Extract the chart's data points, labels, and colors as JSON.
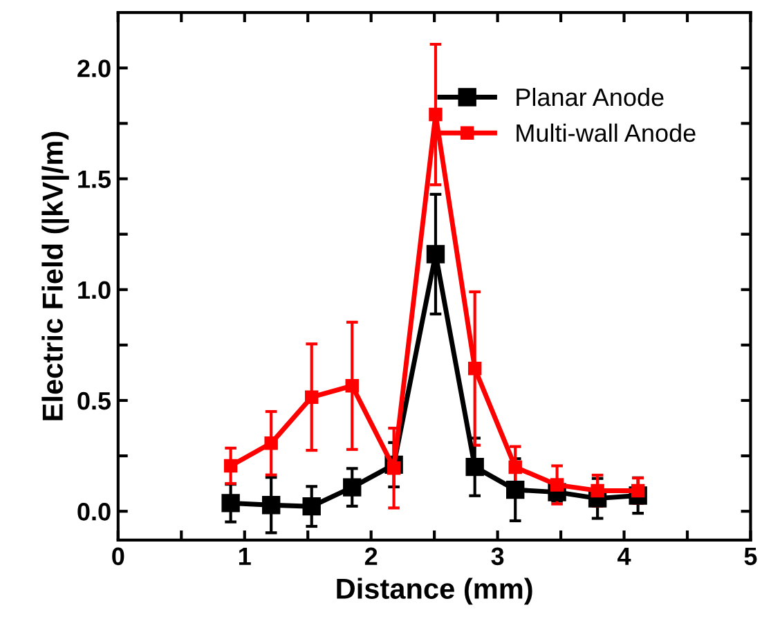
{
  "chart_data": {
    "type": "line",
    "xlabel": "Distance (mm)",
    "ylabel": "Electric Field (|kV|/m)",
    "x": [
      0.89,
      1.21,
      1.53,
      1.85,
      2.18,
      2.51,
      2.82,
      3.14,
      3.47,
      3.79,
      4.11
    ],
    "series": [
      {
        "name": "Planar Anode",
        "color": "#000000",
        "values": [
          0.037,
          0.028,
          0.022,
          0.108,
          0.21,
          1.16,
          0.2,
          0.097,
          0.086,
          0.058,
          0.071
        ],
        "errors": [
          0.085,
          0.125,
          0.09,
          0.085,
          0.1,
          0.27,
          0.13,
          0.14,
          0.04,
          0.09,
          0.08
        ]
      },
      {
        "name": "Multi-wall Anode",
        "color": "#ff0000",
        "values": [
          0.205,
          0.307,
          0.515,
          0.566,
          0.195,
          1.79,
          0.644,
          0.199,
          0.119,
          0.093,
          0.093
        ],
        "errors": [
          0.08,
          0.143,
          0.24,
          0.287,
          0.18,
          0.317,
          0.346,
          0.093,
          0.086,
          0.07,
          0.057
        ]
      }
    ],
    "xlim": [
      0,
      5
    ],
    "ylim": [
      -0.13,
      2.25
    ],
    "xticks": [
      0,
      {
        "value": 0.5,
        "label": null
      },
      1,
      {
        "value": 1.5,
        "label": null
      },
      2,
      {
        "value": 2.5,
        "label": null
      },
      3,
      {
        "value": 3.5,
        "label": null
      },
      4,
      {
        "value": 4.5,
        "label": null
      },
      5
    ],
    "yticks": [
      "0.0",
      {
        "value": 0.25,
        "label": null
      },
      {
        "value": 0.5,
        "label": "0.5"
      },
      {
        "value": 0.75,
        "label": null
      },
      {
        "value": 1.0,
        "label": "1.0"
      },
      {
        "value": 1.25,
        "label": null
      },
      {
        "value": 1.5,
        "label": "1.5"
      },
      {
        "value": 1.75,
        "label": null
      },
      {
        "value": 2.0,
        "label": "2.0"
      }
    ],
    "marker": "square",
    "line_style": "solid",
    "legend": "top right",
    "grid": false
  }
}
